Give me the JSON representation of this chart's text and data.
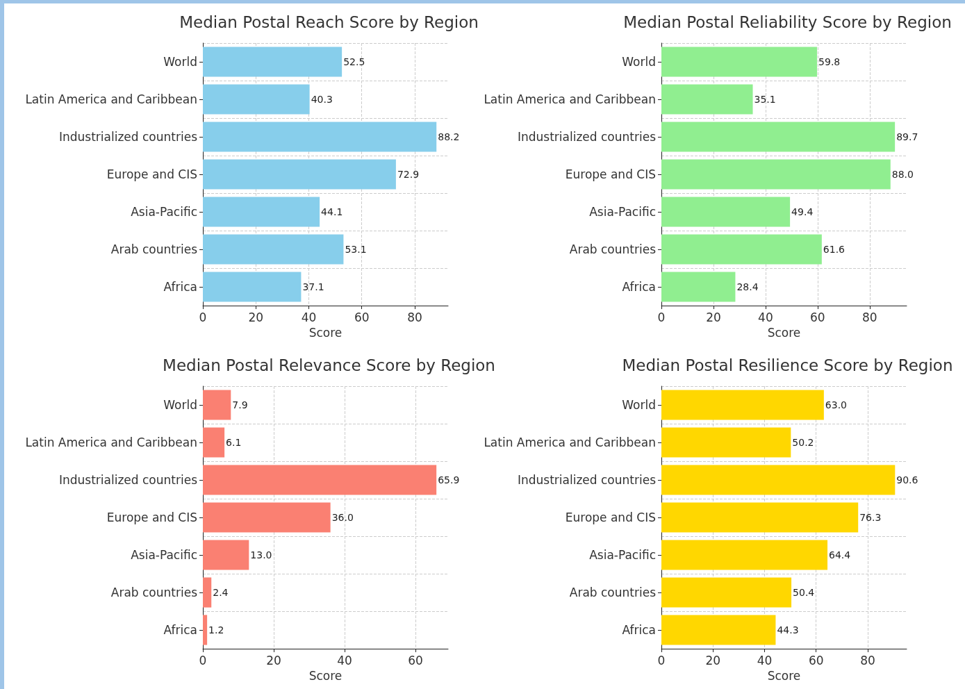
{
  "chart_data": [
    {
      "type": "bar",
      "orientation": "horizontal",
      "title": "Median Postal Reach Score by Region",
      "xlabel": "Score",
      "categories": [
        "World",
        "Latin America and Caribbean",
        "Industrialized countries",
        "Europe and CIS",
        "Asia-Pacific",
        "Arab countries",
        "Africa"
      ],
      "values": [
        52.5,
        40.3,
        88.2,
        72.9,
        44.1,
        53.1,
        37.1
      ],
      "value_labels": [
        "52.5",
        "40.3",
        "88.2",
        "72.9",
        "44.1",
        "53.1",
        "37.1"
      ],
      "color": "#87ceeb",
      "xlim": [
        0,
        92.6
      ],
      "xticks": [
        0,
        20,
        40,
        60,
        80
      ],
      "grid": true
    },
    {
      "type": "bar",
      "orientation": "horizontal",
      "title": "Median Postal Reliability Score by Region",
      "xlabel": "Score",
      "categories": [
        "World",
        "Latin America and Caribbean",
        "Industrialized countries",
        "Europe and CIS",
        "Asia-Pacific",
        "Arab countries",
        "Africa"
      ],
      "values": [
        59.8,
        35.1,
        89.7,
        88.0,
        49.4,
        61.6,
        28.4
      ],
      "value_labels": [
        "59.8",
        "35.1",
        "89.7",
        "88.0",
        "49.4",
        "61.6",
        "28.4"
      ],
      "color": "#90ee90",
      "xlim": [
        0,
        94.2
      ],
      "xticks": [
        0,
        20,
        40,
        60,
        80
      ],
      "grid": true
    },
    {
      "type": "bar",
      "orientation": "horizontal",
      "title": "Median Postal Relevance Score by Region",
      "xlabel": "Score",
      "categories": [
        "World",
        "Latin America and Caribbean",
        "Industrialized countries",
        "Europe and CIS",
        "Asia-Pacific",
        "Arab countries",
        "Africa"
      ],
      "values": [
        7.9,
        6.1,
        65.9,
        36.0,
        13.0,
        2.4,
        1.2
      ],
      "value_labels": [
        "7.9",
        "6.1",
        "65.9",
        "36.0",
        "13.0",
        "2.4",
        "1.2"
      ],
      "color": "#fa8072",
      "xlim": [
        0,
        69.2
      ],
      "xticks": [
        0,
        20,
        40,
        60
      ],
      "grid": true
    },
    {
      "type": "bar",
      "orientation": "horizontal",
      "title": "Median Postal Resilience Score by Region",
      "xlabel": "Score",
      "categories": [
        "World",
        "Latin America and Caribbean",
        "Industrialized countries",
        "Europe and CIS",
        "Asia-Pacific",
        "Arab countries",
        "Africa"
      ],
      "values": [
        63.0,
        50.2,
        90.6,
        76.3,
        64.4,
        50.4,
        44.3
      ],
      "value_labels": [
        "63.0",
        "50.2",
        "90.6",
        "76.3",
        "64.4",
        "50.4",
        "44.3"
      ],
      "color": "#ffd700",
      "xlim": [
        0,
        95.1
      ],
      "xticks": [
        0,
        20,
        40,
        60,
        80
      ],
      "grid": true
    }
  ]
}
